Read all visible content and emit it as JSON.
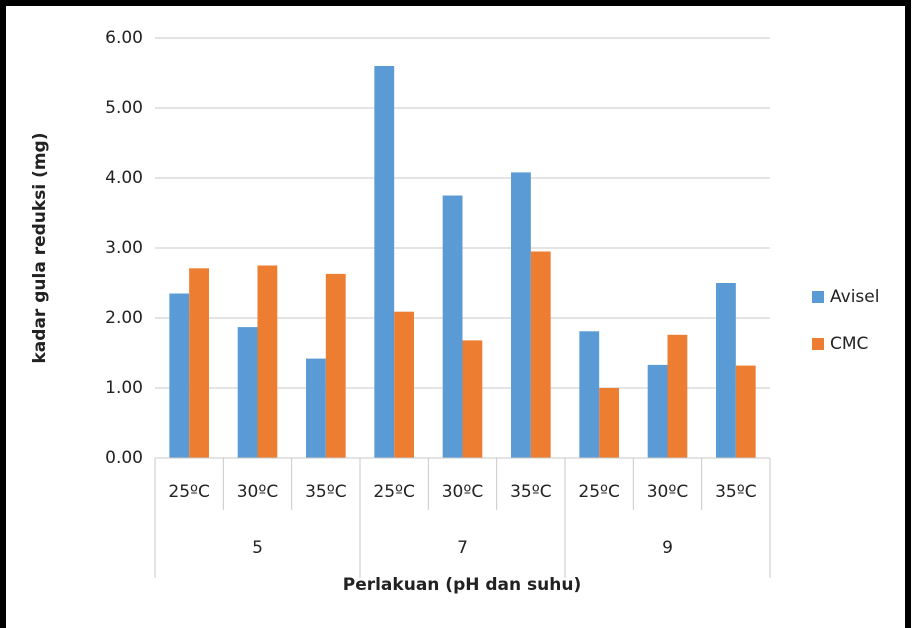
{
  "chart_data": {
    "type": "bar",
    "y_axis_label": "kadar gula reduksi (mg)",
    "x_axis_label": "Perlakuan (pH dan suhu)",
    "categories": [
      "25ºC",
      "30ºC",
      "35ºC",
      "25ºC",
      "30ºC",
      "35ºC",
      "25ºC",
      "30ºC",
      "35ºC"
    ],
    "groups": [
      "5",
      "7",
      "9"
    ],
    "series": [
      {
        "name": "Avisel",
        "color": "#5b9bd5",
        "values": [
          2.35,
          1.87,
          1.42,
          5.6,
          3.75,
          4.08,
          1.81,
          1.33,
          2.5
        ]
      },
      {
        "name": "CMC",
        "color": "#ed7d31",
        "values": [
          2.71,
          2.75,
          2.63,
          2.09,
          1.68,
          2.95,
          1.0,
          1.76,
          1.32
        ]
      }
    ],
    "ylim": [
      0,
      6
    ],
    "yticks": [
      {
        "value": 0,
        "label": "0.00"
      },
      {
        "value": 1,
        "label": "1.00"
      },
      {
        "value": 2,
        "label": "2.00"
      },
      {
        "value": 3,
        "label": "3.00"
      },
      {
        "value": 4,
        "label": "4.00"
      },
      {
        "value": 5,
        "label": "5.00"
      },
      {
        "value": 6,
        "label": "6.00"
      }
    ],
    "grid": true,
    "legend": "right"
  }
}
